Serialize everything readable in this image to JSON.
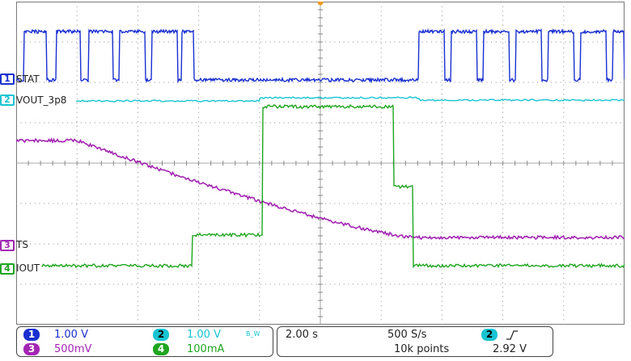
{
  "channels": [
    {
      "id": "1",
      "label": "STAT",
      "scale": "1.00 V",
      "color": "#1a2fd0"
    },
    {
      "id": "2",
      "label": "VOUT_3p8",
      "scale": "1.00 V",
      "color": "#18c3d2",
      "bw": "B_W"
    },
    {
      "id": "3",
      "label": "TS",
      "scale": "500mV",
      "color": "#a326b3"
    },
    {
      "id": "4",
      "label": "IOUT",
      "scale": "100mA",
      "color": "#1fa51f"
    }
  ],
  "timebase": {
    "scale": "2.00 s",
    "sample_rate": "500 S/s",
    "record_length": "10k points"
  },
  "trigger": {
    "source": "2",
    "slope_icon": "rising-edge-icon",
    "level": "2.92 V"
  },
  "colors": {
    "grid": "#8a8a8a",
    "background": "#ffffff"
  }
}
